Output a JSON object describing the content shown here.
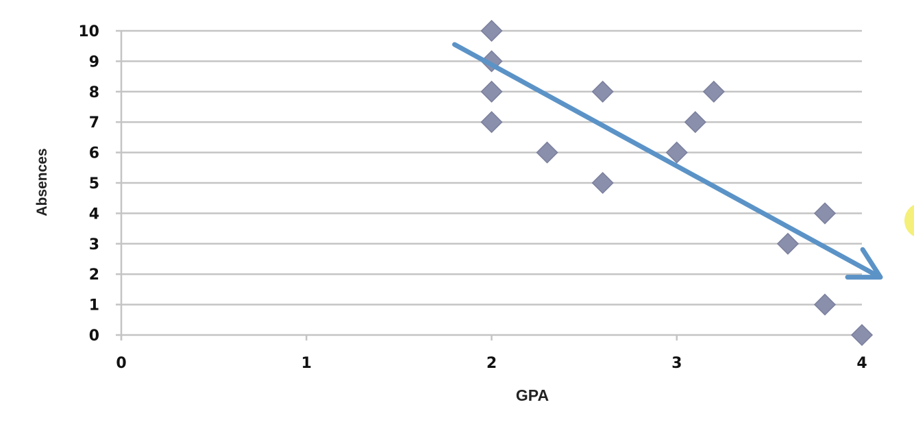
{
  "chart_data": {
    "type": "scatter",
    "title": "",
    "xlabel": "GPA",
    "ylabel": "Absences",
    "xlim": [
      0,
      4
    ],
    "ylim": [
      0,
      10
    ],
    "x_ticks": [
      "0",
      "1",
      "2",
      "3",
      "4"
    ],
    "y_ticks": [
      "0",
      "1",
      "2",
      "3",
      "4",
      "5",
      "6",
      "7",
      "8",
      "9",
      "10"
    ],
    "grid": "horizontal",
    "legend": "none",
    "marker": "diamond",
    "colors": {
      "marker": "#8a8fac",
      "marker_stroke": "#7a7f9c",
      "trend_arrow": "#5b93c7",
      "grid": "#c4c4c4",
      "highlight": "#f4f07a"
    },
    "points": [
      {
        "x": 2.0,
        "y": 10
      },
      {
        "x": 2.0,
        "y": 9
      },
      {
        "x": 2.0,
        "y": 8
      },
      {
        "x": 2.0,
        "y": 7
      },
      {
        "x": 2.3,
        "y": 6
      },
      {
        "x": 2.6,
        "y": 8
      },
      {
        "x": 2.6,
        "y": 5
      },
      {
        "x": 3.0,
        "y": 6
      },
      {
        "x": 3.1,
        "y": 7
      },
      {
        "x": 3.2,
        "y": 8
      },
      {
        "x": 3.6,
        "y": 3
      },
      {
        "x": 3.8,
        "y": 4
      },
      {
        "x": 3.8,
        "y": 1
      },
      {
        "x": 4.0,
        "y": 0
      }
    ],
    "trend_arrow": {
      "from": {
        "x": 1.8,
        "y": 9.55
      },
      "to": {
        "x": 4.1,
        "y": 1.9
      }
    }
  }
}
